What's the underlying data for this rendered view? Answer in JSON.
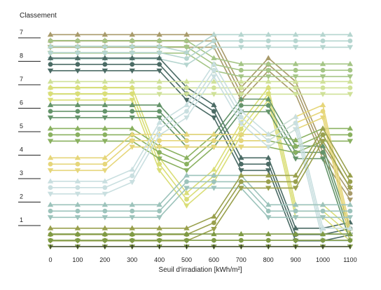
{
  "chart_data": {
    "type": "line",
    "ylabel": "Classement",
    "xlabel": "Seuil d'irradiation [kWh/m²]",
    "x": [
      0,
      100,
      200,
      300,
      400,
      500,
      600,
      700,
      800,
      900,
      1000,
      1100
    ],
    "rank_labels": [
      "1",
      "2",
      "3",
      "4",
      "5",
      "6",
      "7",
      "8",
      "7"
    ],
    "grid": false,
    "series": [
      {
        "color": "#a89a6a",
        "levels": [
          8.75,
          8.75,
          8.75,
          8.75,
          8.75,
          8.75,
          8.75,
          6.5,
          7.75,
          6.75,
          4.0,
          2.25
        ]
      },
      {
        "color": "#a4c585",
        "levels": [
          8.5,
          8.5,
          8.5,
          8.5,
          8.5,
          8.5,
          7.75,
          7.5,
          7.5,
          7.5,
          7.5,
          7.5
        ]
      },
      {
        "color": "#b5d5cf",
        "levels": [
          8.25,
          8.25,
          8.25,
          8.25,
          8.25,
          8.0,
          8.75,
          8.75,
          8.75,
          8.75,
          8.75,
          8.75
        ]
      },
      {
        "color": "#4b6b65",
        "levels": [
          7.75,
          7.75,
          7.75,
          7.75,
          7.75,
          6.5,
          5.75,
          3.5,
          3.5,
          0.5,
          0.5,
          0.75
        ]
      },
      {
        "color": "#cfe198",
        "levels": [
          6.75,
          6.75,
          6.75,
          6.75,
          6.75,
          6.75,
          6.75,
          6.75,
          6.75,
          6.75,
          6.75,
          6.75
        ]
      },
      {
        "color": "#dade77",
        "levels": [
          6.5,
          6.5,
          6.5,
          6.5,
          3.5,
          2.0,
          3.0,
          5.0,
          6.5,
          1.5,
          1.5,
          0.5
        ]
      },
      {
        "color": "#64946a",
        "levels": [
          5.75,
          5.75,
          5.75,
          5.75,
          5.75,
          4.5,
          4.5,
          6.0,
          6.0,
          4.0,
          4.0,
          0.5
        ]
      },
      {
        "color": "#8ab160",
        "levels": [
          4.75,
          4.75,
          4.75,
          4.75,
          4.0,
          3.5,
          4.5,
          4.5,
          4.5,
          4.25,
          4.75,
          4.75
        ]
      },
      {
        "color": "#e6d67a",
        "levels": [
          3.5,
          3.5,
          3.5,
          4.5,
          4.5,
          4.5,
          4.5,
          4.5,
          4.5,
          5.25,
          5.75,
          0.5
        ]
      },
      {
        "color": "#c9dfe0",
        "levels": [
          2.5,
          2.5,
          2.5,
          3.0,
          5.0,
          5.75,
          7.5,
          5.5,
          4.5,
          5.25,
          0.5,
          0.5
        ]
      },
      {
        "color": "#9cc3bb",
        "levels": [
          1.5,
          1.5,
          1.5,
          1.5,
          1.5,
          2.75,
          2.75,
          2.75,
          1.5,
          1.5,
          1.5,
          1.5
        ]
      },
      {
        "color": "#99a04d",
        "levels": [
          0.5,
          0.5,
          0.5,
          0.5,
          0.5,
          0.5,
          1.0,
          2.75,
          2.75,
          2.75,
          4.75,
          2.75
        ]
      },
      {
        "color": "#7e9a44",
        "levels": [
          0.25,
          0.25,
          0.25,
          0.25,
          0.25,
          0.25,
          0.25,
          0.25,
          0.25,
          0.25,
          0.25,
          0.25
        ]
      }
    ]
  }
}
